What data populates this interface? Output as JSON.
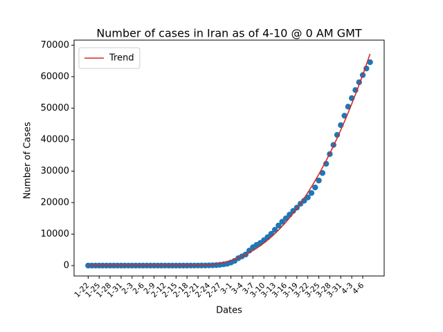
{
  "chart_data": {
    "type": "scatter",
    "title": "Number of cases in Iran as of 4-10 @ 0 AM GMT",
    "xlabel": "Dates",
    "ylabel": "Number of Cases",
    "categories": [
      "1-22",
      null,
      null,
      "1-25",
      null,
      null,
      "1-28",
      null,
      null,
      "1-31",
      null,
      null,
      "2-3",
      null,
      null,
      "2-6",
      null,
      null,
      "2-9",
      null,
      null,
      "2-12",
      null,
      null,
      "2-15",
      null,
      null,
      "2-18",
      null,
      null,
      "2-21",
      null,
      null,
      "2-24",
      null,
      null,
      "2-27",
      null,
      null,
      "3-1",
      null,
      null,
      "3-4",
      null,
      null,
      "3-7",
      null,
      null,
      "3-10",
      null,
      null,
      "3-13",
      null,
      null,
      "3-16",
      null,
      null,
      "3-19",
      null,
      null,
      "3-22",
      null,
      null,
      "3-25",
      null,
      null,
      "3-28",
      null,
      null,
      "3-31",
      null,
      null,
      "4-3",
      null,
      null,
      "4-6",
      null,
      null
    ],
    "series": [
      {
        "style": "markers",
        "color": "#1f77b4",
        "values": [
          0,
          0,
          0,
          0,
          0,
          0,
          0,
          0,
          0,
          0,
          0,
          0,
          0,
          0,
          0,
          0,
          0,
          0,
          0,
          0,
          0,
          0,
          0,
          0,
          0,
          0,
          0,
          0,
          2,
          5,
          18,
          28,
          43,
          61,
          95,
          139,
          245,
          388,
          593,
          978,
          1501,
          2336,
          2922,
          3513,
          4747,
          5823,
          6566,
          7161,
          8042,
          9000,
          10075,
          11364,
          12729,
          13938,
          14991,
          16169,
          17361,
          18407,
          19644,
          20610,
          21638,
          23049,
          24811,
          27017,
          29406,
          32332,
          35408,
          38309,
          41495,
          44605,
          47593,
          50468,
          53183,
          55743,
          58226,
          60500,
          62589,
          64586
        ]
      },
      {
        "style": "line",
        "name": "Trend",
        "color": "#d62728",
        "values": [
          0,
          0,
          0,
          0,
          0,
          0,
          0,
          0,
          0,
          0,
          0,
          0,
          0,
          0,
          0,
          0,
          0,
          0,
          0,
          0,
          0,
          0,
          0,
          0,
          0,
          0,
          0,
          0,
          0,
          4,
          23,
          62,
          128,
          224,
          353,
          519,
          724,
          972,
          1265,
          1605,
          1995,
          2437,
          2934,
          3486,
          4096,
          4766,
          5499,
          6294,
          7155,
          8084,
          9081,
          10148,
          11287,
          12500,
          13788,
          15152,
          16595,
          18116,
          19718,
          21402,
          23170,
          25024,
          26963,
          28988,
          31104,
          33309,
          35604,
          37994,
          40477,
          43055,
          45728,
          48499,
          51368,
          54335,
          57404,
          60576,
          63852,
          67228
        ]
      }
    ],
    "xlim": [
      -3.85,
      80.85
    ],
    "ylim": [
      -3300,
      71600
    ],
    "yticks": [
      0,
      10000,
      20000,
      30000,
      40000,
      50000,
      60000,
      70000
    ],
    "legend": "upper left"
  }
}
